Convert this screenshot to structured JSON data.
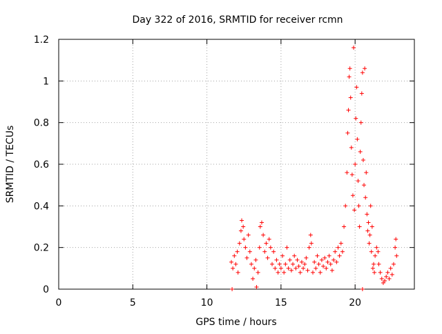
{
  "chart_data": {
    "type": "scatter",
    "title": "Day 322 of 2016, SRMTID for receiver rcmn",
    "xlabel": "GPS time / hours",
    "ylabel": "SRMTID / TECUs",
    "xlim": [
      0,
      24
    ],
    "ylim": [
      0,
      1.2
    ],
    "x_ticks": [
      0,
      5,
      10,
      15,
      20
    ],
    "x_tick_labels": [
      "0",
      "5",
      "10",
      "15",
      "20"
    ],
    "y_ticks": [
      0,
      0.2,
      0.4,
      0.6,
      0.8,
      1.0,
      1.2
    ],
    "y_tick_labels": [
      "0",
      "0.2",
      "0.4",
      "0.6",
      "0.8",
      "1",
      "1.2"
    ],
    "grid": true,
    "marker": "+",
    "color": "#ff0000",
    "series": [
      {
        "name": "SRMTID",
        "points": [
          [
            11.65,
            0.13
          ],
          [
            11.75,
            0.1
          ],
          [
            11.85,
            0.16
          ],
          [
            11.95,
            0.12
          ],
          [
            12.05,
            0.18
          ],
          [
            12.1,
            0.08
          ],
          [
            12.2,
            0.22
          ],
          [
            12.3,
            0.28
          ],
          [
            12.35,
            0.33
          ],
          [
            12.45,
            0.3
          ],
          [
            12.5,
            0.24
          ],
          [
            12.6,
            0.2
          ],
          [
            12.7,
            0.15
          ],
          [
            12.8,
            0.26
          ],
          [
            12.9,
            0.18
          ],
          [
            13.0,
            0.12
          ],
          [
            13.1,
            0.05
          ],
          [
            13.2,
            0.1
          ],
          [
            13.3,
            0.14
          ],
          [
            13.35,
            0.01
          ],
          [
            13.45,
            0.08
          ],
          [
            13.55,
            0.2
          ],
          [
            13.6,
            0.3
          ],
          [
            13.7,
            0.32
          ],
          [
            13.8,
            0.26
          ],
          [
            13.9,
            0.18
          ],
          [
            14.0,
            0.22
          ],
          [
            14.1,
            0.15
          ],
          [
            14.2,
            0.24
          ],
          [
            14.3,
            0.2
          ],
          [
            14.4,
            0.12
          ],
          [
            14.5,
            0.18
          ],
          [
            14.6,
            0.1
          ],
          [
            14.7,
            0.14
          ],
          [
            14.8,
            0.08
          ],
          [
            14.9,
            0.12
          ],
          [
            15.0,
            0.1
          ],
          [
            15.1,
            0.16
          ],
          [
            15.2,
            0.08
          ],
          [
            15.3,
            0.12
          ],
          [
            15.4,
            0.2
          ],
          [
            15.5,
            0.1
          ],
          [
            15.6,
            0.14
          ],
          [
            15.7,
            0.09
          ],
          [
            15.8,
            0.12
          ],
          [
            15.9,
            0.16
          ],
          [
            16.0,
            0.1
          ],
          [
            16.1,
            0.14
          ],
          [
            16.2,
            0.11
          ],
          [
            16.3,
            0.08
          ],
          [
            16.4,
            0.13
          ],
          [
            16.5,
            0.1
          ],
          [
            16.6,
            0.12
          ],
          [
            16.7,
            0.15
          ],
          [
            16.8,
            0.09
          ],
          [
            16.9,
            0.2
          ],
          [
            17.0,
            0.26
          ],
          [
            17.05,
            0.22
          ],
          [
            17.15,
            0.08
          ],
          [
            17.25,
            0.13
          ],
          [
            17.35,
            0.1
          ],
          [
            17.45,
            0.16
          ],
          [
            17.55,
            0.12
          ],
          [
            17.65,
            0.08
          ],
          [
            17.75,
            0.14
          ],
          [
            17.85,
            0.11
          ],
          [
            17.95,
            0.15
          ],
          [
            18.05,
            0.1
          ],
          [
            18.15,
            0.13
          ],
          [
            18.25,
            0.16
          ],
          [
            18.35,
            0.12
          ],
          [
            18.45,
            0.09
          ],
          [
            18.55,
            0.14
          ],
          [
            18.65,
            0.18
          ],
          [
            18.75,
            0.13
          ],
          [
            18.85,
            0.2
          ],
          [
            18.95,
            0.16
          ],
          [
            19.05,
            0.22
          ],
          [
            19.15,
            0.18
          ],
          [
            19.25,
            0.3
          ],
          [
            19.35,
            0.4
          ],
          [
            19.45,
            0.56
          ],
          [
            19.5,
            0.75
          ],
          [
            19.55,
            0.86
          ],
          [
            19.6,
            1.02
          ],
          [
            19.65,
            1.06
          ],
          [
            19.7,
            0.92
          ],
          [
            19.75,
            0.68
          ],
          [
            19.8,
            0.55
          ],
          [
            19.85,
            0.45
          ],
          [
            19.9,
            1.16
          ],
          [
            19.95,
            0.38
          ],
          [
            20.0,
            0.6
          ],
          [
            20.05,
            0.82
          ],
          [
            20.1,
            0.97
          ],
          [
            20.15,
            0.72
          ],
          [
            20.2,
            0.52
          ],
          [
            20.25,
            0.4
          ],
          [
            20.3,
            0.3
          ],
          [
            20.35,
            0.66
          ],
          [
            20.4,
            0.8
          ],
          [
            20.45,
            0.94
          ],
          [
            20.5,
            1.04
          ],
          [
            20.55,
            0.62
          ],
          [
            20.6,
            0.5
          ],
          [
            20.65,
            1.06
          ],
          [
            20.7,
            0.44
          ],
          [
            20.75,
            0.56
          ],
          [
            20.8,
            0.36
          ],
          [
            20.85,
            0.28
          ],
          [
            20.9,
            0.32
          ],
          [
            20.95,
            0.22
          ],
          [
            21.0,
            0.26
          ],
          [
            21.05,
            0.4
          ],
          [
            21.1,
            0.18
          ],
          [
            21.15,
            0.3
          ],
          [
            21.2,
            0.1
          ],
          [
            21.25,
            0.12
          ],
          [
            21.3,
            0.08
          ],
          [
            21.35,
            0.16
          ],
          [
            21.45,
            0.2
          ],
          [
            21.55,
            0.18
          ],
          [
            21.6,
            0.12
          ],
          [
            21.7,
            0.08
          ],
          [
            21.8,
            0.05
          ],
          [
            21.9,
            0.03
          ],
          [
            22.0,
            0.04
          ],
          [
            22.1,
            0.06
          ],
          [
            22.2,
            0.08
          ],
          [
            22.3,
            0.05
          ],
          [
            22.4,
            0.1
          ],
          [
            22.5,
            0.07
          ],
          [
            22.6,
            0.12
          ],
          [
            22.7,
            0.2
          ],
          [
            22.75,
            0.24
          ],
          [
            22.8,
            0.16
          ],
          [
            11.7,
            0.0
          ],
          [
            20.5,
            0.0
          ]
        ]
      }
    ]
  }
}
